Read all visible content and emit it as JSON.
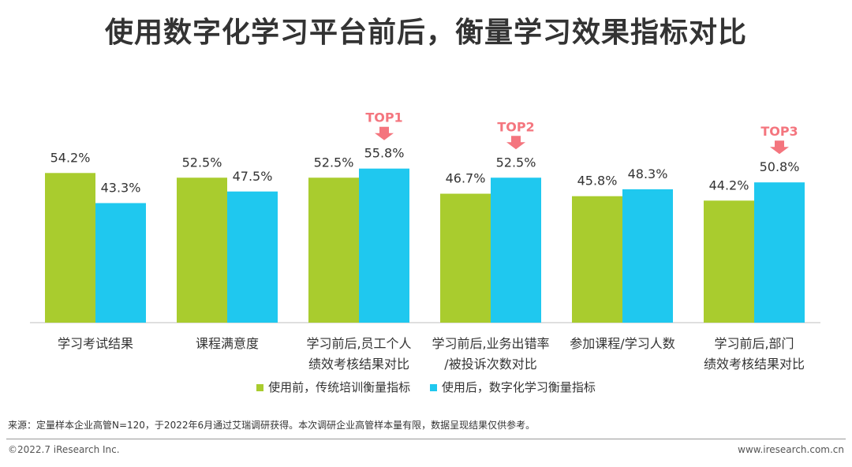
{
  "title": "使用数字化学习平台前后，衡量学习效果指标对比",
  "chart_data": {
    "type": "bar",
    "categories": [
      [
        "学习考试结果"
      ],
      [
        "课程满意度"
      ],
      [
        "学习前后,员工个人",
        "绩效考核结果对比"
      ],
      [
        "学习前后,业务出错率",
        "/被投诉次数对比"
      ],
      [
        "参加课程/学习人数"
      ],
      [
        "学习前后,部门",
        "绩效考核结果对比"
      ]
    ],
    "series": [
      {
        "name": "使用前，传统培训衡量指标",
        "color": "#A9CC2E",
        "values": [
          54.2,
          52.5,
          52.5,
          46.7,
          45.8,
          44.2
        ],
        "labels": [
          "54.2%",
          "52.5%",
          "52.5%",
          "46.7%",
          "45.8%",
          "44.2%"
        ]
      },
      {
        "name": "使用后，数字化学习衡量指标",
        "color": "#1FC8EF",
        "values": [
          43.3,
          47.5,
          55.8,
          52.5,
          48.3,
          50.8
        ],
        "labels": [
          "43.3%",
          "47.5%",
          "55.8%",
          "52.5%",
          "48.3%",
          "50.8%"
        ]
      }
    ],
    "annotations": [
      {
        "text": "TOP1",
        "category_index": 2,
        "series_index": 1
      },
      {
        "text": "TOP2",
        "category_index": 3,
        "series_index": 1
      },
      {
        "text": "TOP3",
        "category_index": 5,
        "series_index": 1
      }
    ],
    "annotation_color": "#F4757E",
    "ylim": [
      0,
      100
    ],
    "grid": false
  },
  "footer": {
    "source": "来源：定量样本企业高管N=120，于2022年6月通过艾瑞调研获得。本次调研企业高管样本量有限，数据呈现结果仅供参考。",
    "copyright": "©2022.7 iResearch Inc.",
    "website": "www.iresearch.com.cn"
  }
}
